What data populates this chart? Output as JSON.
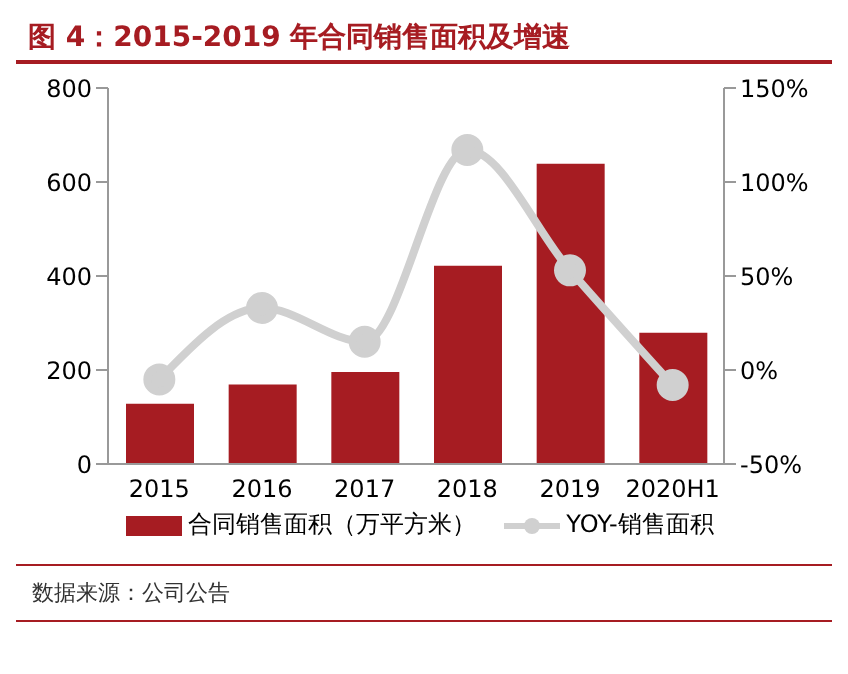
{
  "chart_data": {
    "type": "bar",
    "title": "图 4：2015-2019 年合同销售面积及增速",
    "categories": [
      "2015",
      "2016",
      "2017",
      "2018",
      "2019",
      "2020H1"
    ],
    "series": [
      {
        "name": "合同销售面积（万平方米）",
        "color": "#a61c22",
        "values": [
          128,
          169,
          196,
          422,
          639,
          279
        ]
      },
      {
        "name": "YOY-销售面积",
        "type": "line",
        "axis": "y2",
        "color": "#d0d0d0",
        "marker": "circle",
        "values": [
          -5,
          33,
          15,
          117,
          53,
          -8
        ]
      }
    ],
    "ylim": [
      0,
      800
    ],
    "yticks": [
      0,
      200,
      400,
      600,
      800
    ],
    "y2lim": [
      -50,
      150
    ],
    "y2ticks": [
      {
        "value": -50,
        "label": "-50%"
      },
      {
        "value": 0,
        "label": "0%"
      },
      {
        "value": 50,
        "label": "50%"
      },
      {
        "value": 100,
        "label": "100%"
      },
      {
        "value": 150,
        "label": "150%"
      }
    ],
    "grid": false,
    "legend": "bottom",
    "annotations": [
      "数据来源：公司公告"
    ]
  }
}
